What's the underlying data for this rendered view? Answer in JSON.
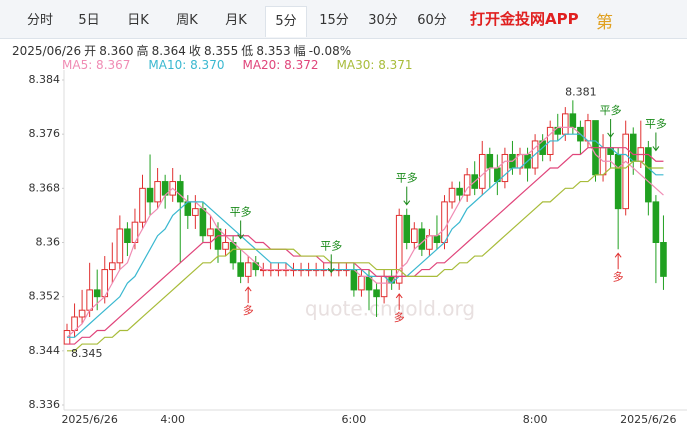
{
  "tabs": [
    {
      "label": "分时"
    },
    {
      "label": "5日"
    },
    {
      "label": "日K"
    },
    {
      "label": "周K"
    },
    {
      "label": "月K"
    },
    {
      "label": "5分",
      "active": true
    },
    {
      "label": "15分"
    },
    {
      "label": "30分"
    },
    {
      "label": "60分"
    }
  ],
  "app_link": "打开金投网APP",
  "icon_text": "第",
  "quote": {
    "date": "2025/06/26",
    "fields": [
      {
        "label": "开",
        "value": "8.360"
      },
      {
        "label": "高",
        "value": "8.364"
      },
      {
        "label": "收",
        "value": "8.355"
      },
      {
        "label": "低",
        "value": "8.353"
      },
      {
        "label": "幅",
        "value": "-0.08%"
      }
    ]
  },
  "watermark": "quote.cngold.org",
  "chart_data": {
    "type": "candlestick",
    "categories": [
      null,
      null,
      null,
      "2025/6/26",
      null,
      null,
      null,
      null,
      null,
      null,
      null,
      null,
      null,
      null,
      "4:00",
      null,
      null,
      null,
      null,
      null,
      null,
      null,
      null,
      null,
      null,
      null,
      null,
      null,
      null,
      null,
      null,
      null,
      null,
      null,
      null,
      null,
      null,
      null,
      "6:00",
      null,
      null,
      null,
      null,
      null,
      null,
      null,
      null,
      null,
      null,
      null,
      null,
      null,
      null,
      null,
      null,
      null,
      null,
      null,
      null,
      null,
      null,
      null,
      "8:00",
      null,
      null,
      null,
      null,
      null,
      null,
      null,
      null,
      null,
      null,
      null,
      null,
      null,
      null,
      "2025/6/26",
      null,
      null
    ],
    "open": [
      8.345,
      8.347,
      8.349,
      8.35,
      8.353,
      8.352,
      8.356,
      8.357,
      8.362,
      8.36,
      8.363,
      8.368,
      8.366,
      8.369,
      8.367,
      8.369,
      8.366,
      8.364,
      8.365,
      8.361,
      8.362,
      8.359,
      8.36,
      8.357,
      8.355,
      8.357,
      8.356,
      8.356,
      8.356,
      8.356,
      8.356,
      8.356,
      8.356,
      8.356,
      8.356,
      8.356,
      8.356,
      8.356,
      8.356,
      8.353,
      8.355,
      8.353,
      8.352,
      8.355,
      8.354,
      8.364,
      8.36,
      8.362,
      8.359,
      8.361,
      8.36,
      8.366,
      8.368,
      8.367,
      8.37,
      8.368,
      8.373,
      8.371,
      8.369,
      8.373,
      8.371,
      8.373,
      8.371,
      8.375,
      8.373,
      8.377,
      8.376,
      8.379,
      8.377,
      8.375,
      8.378,
      8.37,
      8.374,
      8.373,
      8.365,
      8.376,
      8.372,
      8.374,
      8.366,
      8.36
    ],
    "high": [
      8.348,
      8.351,
      8.353,
      8.357,
      8.356,
      8.358,
      8.36,
      8.364,
      8.363,
      8.365,
      8.37,
      8.373,
      8.371,
      8.37,
      8.371,
      8.37,
      8.367,
      8.367,
      8.366,
      8.364,
      8.363,
      8.362,
      8.361,
      8.359,
      8.358,
      8.358,
      8.357,
      8.357,
      8.357,
      8.357,
      8.357,
      8.357,
      8.357,
      8.357,
      8.357,
      8.357,
      8.357,
      8.357,
      8.357,
      8.356,
      8.356,
      8.354,
      8.356,
      8.356,
      8.365,
      8.365,
      8.363,
      8.363,
      8.362,
      8.364,
      8.367,
      8.369,
      8.369,
      8.371,
      8.372,
      8.375,
      8.374,
      8.373,
      8.374,
      8.375,
      8.374,
      8.374,
      8.376,
      8.376,
      8.378,
      8.379,
      8.38,
      8.381,
      8.378,
      8.379,
      8.378,
      8.376,
      8.376,
      8.374,
      8.378,
      8.377,
      8.378,
      8.375,
      8.367,
      8.364
    ],
    "low": [
      8.345,
      8.346,
      8.348,
      8.349,
      8.35,
      8.351,
      8.354,
      8.356,
      8.358,
      8.359,
      8.362,
      8.364,
      8.365,
      8.365,
      8.366,
      8.357,
      8.362,
      8.362,
      8.36,
      8.359,
      8.357,
      8.358,
      8.356,
      8.354,
      8.354,
      8.355,
      8.355,
      8.355,
      8.355,
      8.355,
      8.355,
      8.355,
      8.355,
      8.355,
      8.355,
      8.355,
      8.355,
      8.355,
      8.352,
      8.352,
      8.35,
      8.349,
      8.351,
      8.353,
      8.353,
      8.359,
      8.359,
      8.358,
      8.358,
      8.359,
      8.359,
      8.365,
      8.366,
      8.366,
      8.367,
      8.367,
      8.368,
      8.367,
      8.368,
      8.37,
      8.37,
      8.369,
      8.37,
      8.372,
      8.372,
      8.375,
      8.375,
      8.376,
      8.373,
      8.374,
      8.369,
      8.369,
      8.371,
      8.359,
      8.364,
      8.37,
      8.371,
      8.364,
      8.354,
      8.353
    ],
    "close": [
      8.347,
      8.349,
      8.35,
      8.353,
      8.352,
      8.356,
      8.357,
      8.362,
      8.36,
      8.363,
      8.368,
      8.366,
      8.369,
      8.367,
      8.369,
      8.366,
      8.364,
      8.365,
      8.361,
      8.362,
      8.359,
      8.36,
      8.357,
      8.355,
      8.357,
      8.356,
      8.356,
      8.356,
      8.356,
      8.356,
      8.356,
      8.356,
      8.356,
      8.356,
      8.356,
      8.356,
      8.356,
      8.356,
      8.353,
      8.355,
      8.353,
      8.352,
      8.355,
      8.354,
      8.364,
      8.36,
      8.362,
      8.359,
      8.361,
      8.36,
      8.366,
      8.368,
      8.367,
      8.37,
      8.368,
      8.373,
      8.371,
      8.369,
      8.373,
      8.371,
      8.373,
      8.371,
      8.375,
      8.373,
      8.377,
      8.376,
      8.379,
      8.377,
      8.375,
      8.378,
      8.37,
      8.374,
      8.373,
      8.365,
      8.376,
      8.372,
      8.374,
      8.366,
      8.36,
      8.355
    ],
    "up_color": "#e03030",
    "down_color": "#20a020",
    "series": [
      {
        "name": "MA5: 8.367",
        "color": "#f08cb4",
        "values": [
          8.346,
          8.347,
          8.348,
          8.35,
          8.351,
          8.352,
          8.354,
          8.356,
          8.357,
          8.36,
          8.362,
          8.364,
          8.365,
          8.367,
          8.368,
          8.367,
          8.366,
          8.366,
          8.365,
          8.364,
          8.362,
          8.361,
          8.36,
          8.359,
          8.358,
          8.357,
          8.356,
          8.356,
          8.356,
          8.356,
          8.356,
          8.356,
          8.356,
          8.356,
          8.356,
          8.356,
          8.356,
          8.356,
          8.356,
          8.355,
          8.355,
          8.354,
          8.354,
          8.354,
          8.356,
          8.357,
          8.359,
          8.36,
          8.361,
          8.361,
          8.362,
          8.364,
          8.366,
          8.368,
          8.369,
          8.37,
          8.371,
          8.371,
          8.372,
          8.372,
          8.373,
          8.373,
          8.374,
          8.375,
          8.376,
          8.377,
          8.377,
          8.377,
          8.376,
          8.375,
          8.373,
          8.372,
          8.372,
          8.371,
          8.372,
          8.371,
          8.37,
          8.369,
          8.368,
          8.367
        ]
      },
      {
        "name": "MA10: 8.370",
        "color": "#3ab8d0",
        "values": [
          8.346,
          8.346,
          8.347,
          8.348,
          8.349,
          8.35,
          8.351,
          8.352,
          8.354,
          8.355,
          8.357,
          8.359,
          8.361,
          8.362,
          8.364,
          8.365,
          8.366,
          8.366,
          8.366,
          8.365,
          8.364,
          8.363,
          8.362,
          8.361,
          8.36,
          8.359,
          8.358,
          8.357,
          8.357,
          8.357,
          8.356,
          8.356,
          8.356,
          8.356,
          8.356,
          8.356,
          8.356,
          8.356,
          8.356,
          8.356,
          8.355,
          8.355,
          8.355,
          8.354,
          8.355,
          8.355,
          8.356,
          8.357,
          8.358,
          8.359,
          8.36,
          8.362,
          8.363,
          8.365,
          8.366,
          8.367,
          8.368,
          8.369,
          8.37,
          8.371,
          8.371,
          8.372,
          8.373,
          8.374,
          8.375,
          8.375,
          8.376,
          8.376,
          8.376,
          8.375,
          8.375,
          8.374,
          8.374,
          8.373,
          8.373,
          8.372,
          8.372,
          8.371,
          8.37,
          8.37
        ]
      },
      {
        "name": "MA20: 8.372",
        "color": "#e0457b",
        "values": [
          8.345,
          8.345,
          8.346,
          8.346,
          8.347,
          8.347,
          8.348,
          8.349,
          8.35,
          8.351,
          8.352,
          8.353,
          8.354,
          8.355,
          8.356,
          8.357,
          8.358,
          8.359,
          8.36,
          8.36,
          8.361,
          8.361,
          8.361,
          8.361,
          8.361,
          8.36,
          8.36,
          8.359,
          8.359,
          8.359,
          8.358,
          8.358,
          8.358,
          8.358,
          8.357,
          8.357,
          8.357,
          8.357,
          8.357,
          8.356,
          8.356,
          8.355,
          8.355,
          8.355,
          8.355,
          8.355,
          8.355,
          8.356,
          8.356,
          8.357,
          8.357,
          8.358,
          8.359,
          8.36,
          8.361,
          8.362,
          8.363,
          8.364,
          8.365,
          8.366,
          8.367,
          8.368,
          8.369,
          8.37,
          8.371,
          8.371,
          8.372,
          8.373,
          8.373,
          8.374,
          8.374,
          8.374,
          8.374,
          8.374,
          8.374,
          8.373,
          8.373,
          8.373,
          8.372,
          8.372
        ]
      },
      {
        "name": "MA30: 8.371",
        "color": "#a8bc3a",
        "values": [
          8.344,
          8.344,
          8.345,
          8.345,
          8.345,
          8.346,
          8.346,
          8.347,
          8.347,
          8.348,
          8.349,
          8.35,
          8.351,
          8.352,
          8.353,
          8.354,
          8.355,
          8.356,
          8.357,
          8.357,
          8.358,
          8.358,
          8.359,
          8.359,
          8.359,
          8.359,
          8.359,
          8.359,
          8.359,
          8.359,
          8.359,
          8.358,
          8.358,
          8.358,
          8.358,
          8.357,
          8.357,
          8.357,
          8.357,
          8.357,
          8.357,
          8.356,
          8.356,
          8.356,
          8.356,
          8.355,
          8.355,
          8.355,
          8.355,
          8.355,
          8.356,
          8.356,
          8.357,
          8.357,
          8.358,
          8.358,
          8.359,
          8.36,
          8.361,
          8.362,
          8.363,
          8.364,
          8.365,
          8.366,
          8.366,
          8.367,
          8.368,
          8.368,
          8.369,
          8.369,
          8.37,
          8.37,
          8.371,
          8.371,
          8.371,
          8.372,
          8.372,
          8.371,
          8.371,
          8.371
        ]
      }
    ],
    "ylim": [
      8.336,
      8.384
    ],
    "yticks": [
      8.384,
      8.376,
      8.368,
      8.36,
      8.352,
      8.344,
      8.336
    ],
    "grid": false,
    "high_label": "8.381",
    "low_label": "8.345",
    "annotations": [
      {
        "text": "平多",
        "x": 23,
        "y": 8.36,
        "dir": "down"
      },
      {
        "text": "平多",
        "x": 35,
        "y": 8.355,
        "dir": "down"
      },
      {
        "text": "平多",
        "x": 45,
        "y": 8.365,
        "dir": "down"
      },
      {
        "text": "平多",
        "x": 72,
        "y": 8.375,
        "dir": "down"
      },
      {
        "text": "平多",
        "x": 78,
        "y": 8.373,
        "dir": "down"
      },
      {
        "text": "多",
        "x": 24,
        "y": 8.354,
        "dir": "up"
      },
      {
        "text": "多",
        "x": 44,
        "y": 8.353,
        "dir": "up"
      },
      {
        "text": "多",
        "x": 73,
        "y": 8.359,
        "dir": "up"
      }
    ]
  }
}
